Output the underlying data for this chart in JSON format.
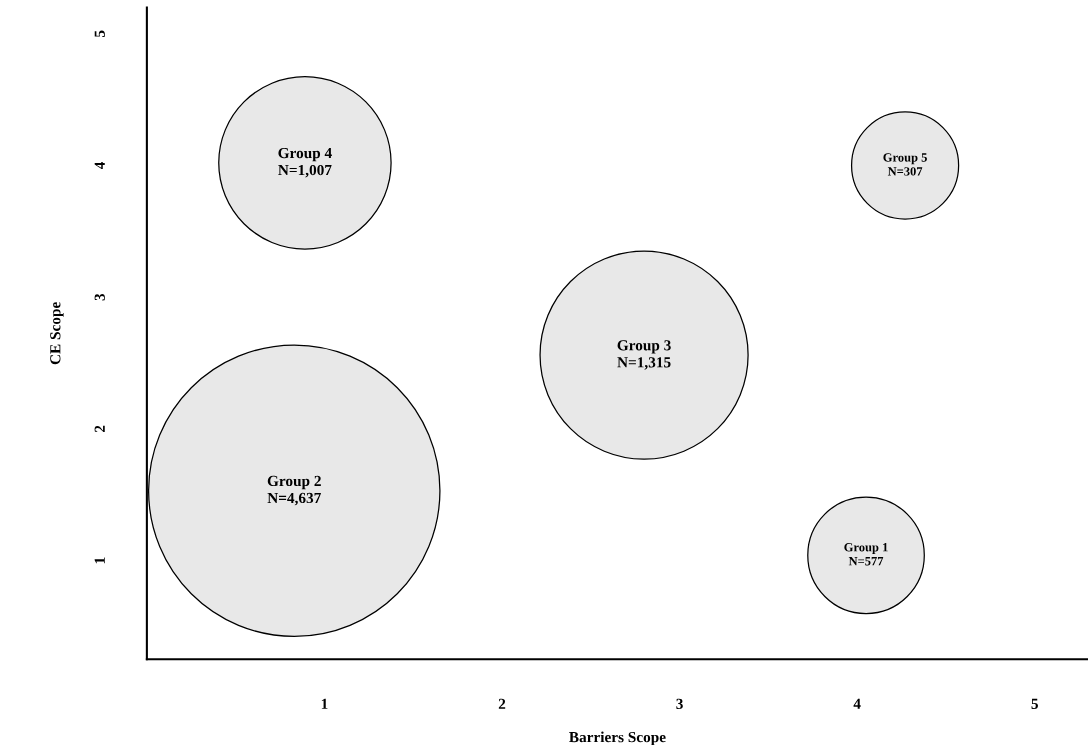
{
  "chart_data": {
    "type": "bubble",
    "xlabel": "Barriers Scope",
    "ylabel": "CE Scope",
    "x": [
      0.83,
      2.8,
      0.89,
      4.27,
      4.05
    ],
    "values": [
      1.53,
      2.56,
      4.02,
      4.0,
      1.04
    ],
    "sizes": [
      1,
      0.51,
      0.35,
      0.135,
      0.16
    ],
    "color": "#e8e8e8",
    "xlim": [
      0,
      5.3
    ],
    "ylim": [
      0.25,
      5.2
    ],
    "xticks": [
      1,
      2,
      3,
      4,
      5
    ],
    "yticks": [
      1,
      2,
      3,
      4,
      5
    ],
    "grid": false,
    "legend": false,
    "annotations": [
      {
        "text": "Group 2\nN=4,637",
        "x": 0.83,
        "y": 1.53
      },
      {
        "text": "Group 3\nN=1,315",
        "x": 2.8,
        "y": 2.56
      },
      {
        "text": "Group 4\nN=1,007",
        "x": 0.89,
        "y": 4.02
      },
      {
        "text": "Group 5\nN=307",
        "x": 4.27,
        "y": 4.0
      },
      {
        "text": "Group 1\nN=577",
        "x": 4.05,
        "y": 1.04
      }
    ]
  }
}
